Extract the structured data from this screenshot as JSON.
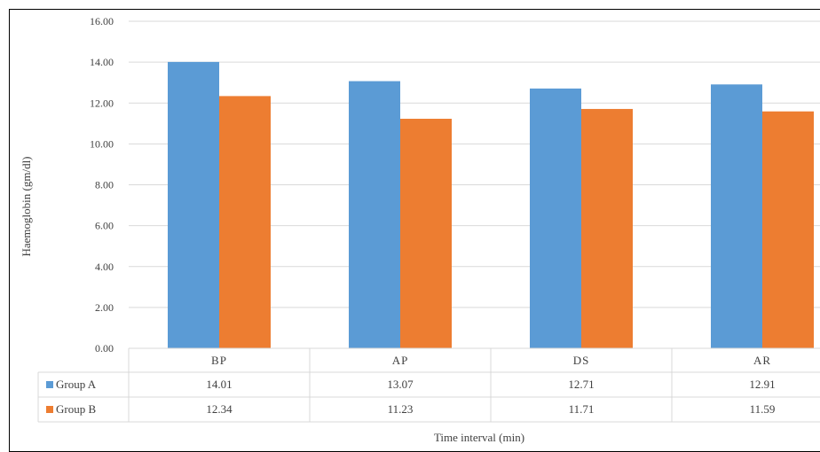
{
  "chart_data": {
    "type": "bar",
    "title": "",
    "xlabel": "Time interval (min)",
    "ylabel": "Haemoglobin (gm/dl)",
    "ylim": [
      0,
      16
    ],
    "ytick_step": 2,
    "ytick_labels": [
      "0.00",
      "2.00",
      "4.00",
      "6.00",
      "8.00",
      "10.00",
      "12.00",
      "14.00",
      "16.00"
    ],
    "grid": true,
    "legend": "data-table",
    "categories": [
      "BP",
      "AP",
      "DS",
      "AR"
    ],
    "series": [
      {
        "name": "Group A",
        "color": "#5B9BD5",
        "values": [
          14.01,
          13.07,
          12.71,
          12.91
        ],
        "labels": [
          "14.01",
          "13.07",
          "12.71",
          "12.91"
        ]
      },
      {
        "name": "Group B",
        "color": "#ED7D31",
        "values": [
          12.34,
          11.23,
          11.71,
          11.59
        ],
        "labels": [
          "12.34",
          "11.23",
          "11.71",
          "11.59"
        ]
      }
    ]
  }
}
